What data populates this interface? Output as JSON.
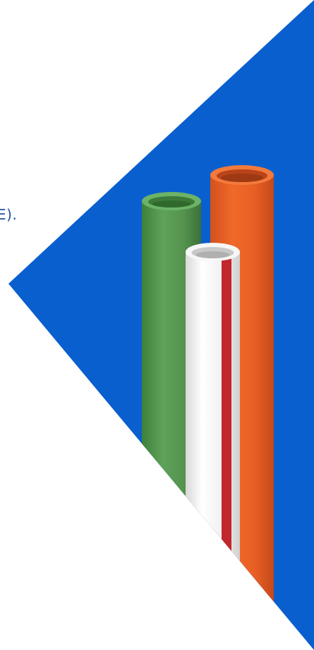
{
  "scene": {
    "visible_text_fragment": "E).",
    "colors": {
      "triangle_blue": "#0a5fcf",
      "pipe_green": "#5a9a55",
      "pipe_orange": "#f0692a",
      "pipe_white": "#f2f2f2",
      "stripe_red": "#c1272d",
      "text_blue": "#1f4fa0"
    },
    "pipes": [
      {
        "name": "green-pipe"
      },
      {
        "name": "orange-pipe"
      },
      {
        "name": "white-pipe"
      }
    ]
  }
}
